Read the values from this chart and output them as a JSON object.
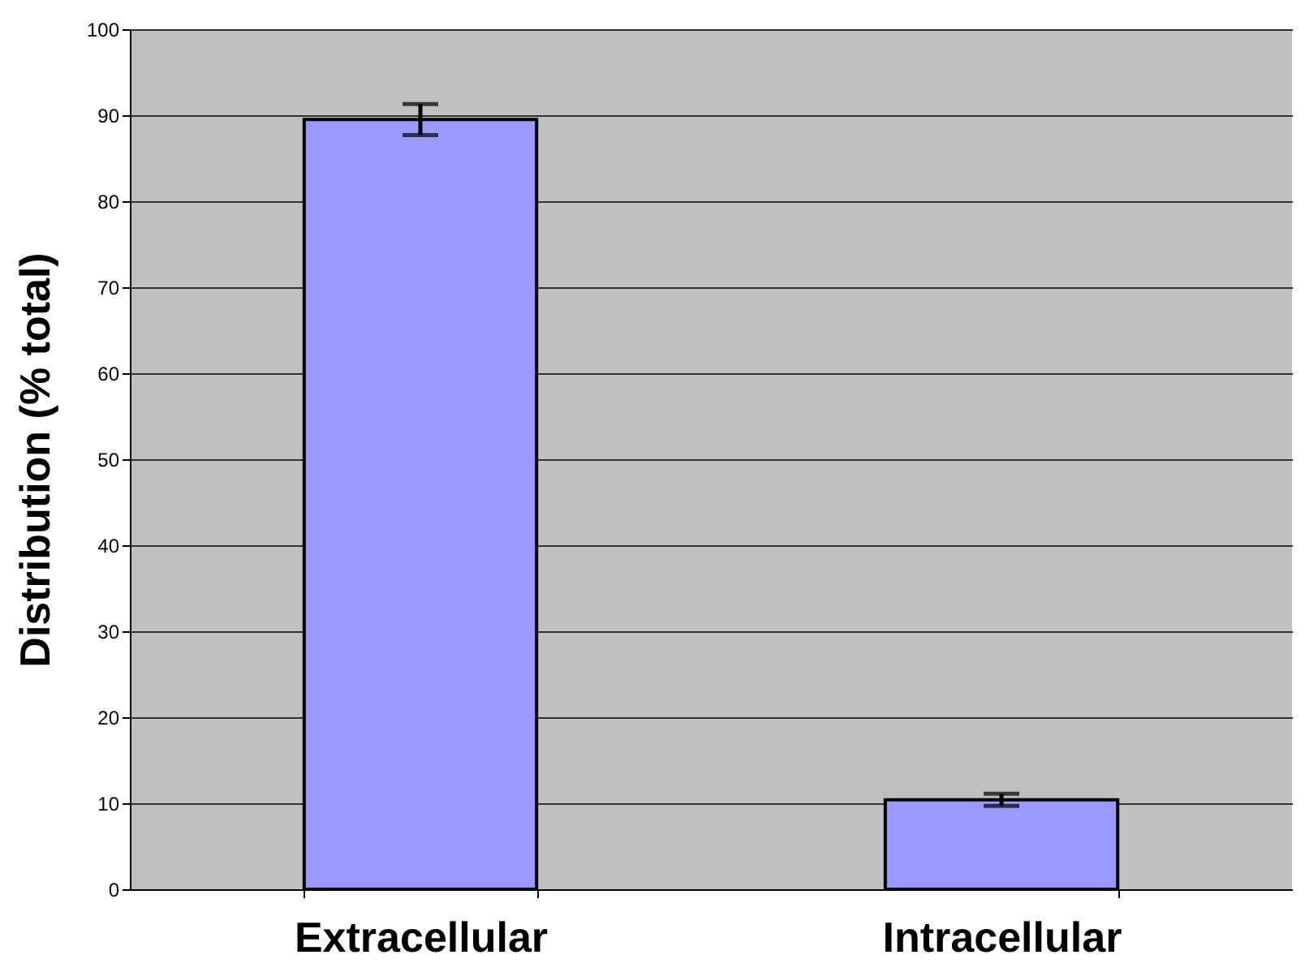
{
  "chart_data": {
    "type": "bar",
    "ylabel": "Distribution (% total)",
    "categories": [
      "Extracellular",
      "Intracellular"
    ],
    "values": [
      89.5,
      10.4
    ],
    "errors": [
      1.8,
      0.7
    ],
    "color": "#9999ff",
    "ylim": [
      0,
      100
    ],
    "yticks": [
      0,
      10,
      20,
      30,
      40,
      50,
      60,
      70,
      80,
      90,
      100
    ],
    "grid": "y"
  }
}
